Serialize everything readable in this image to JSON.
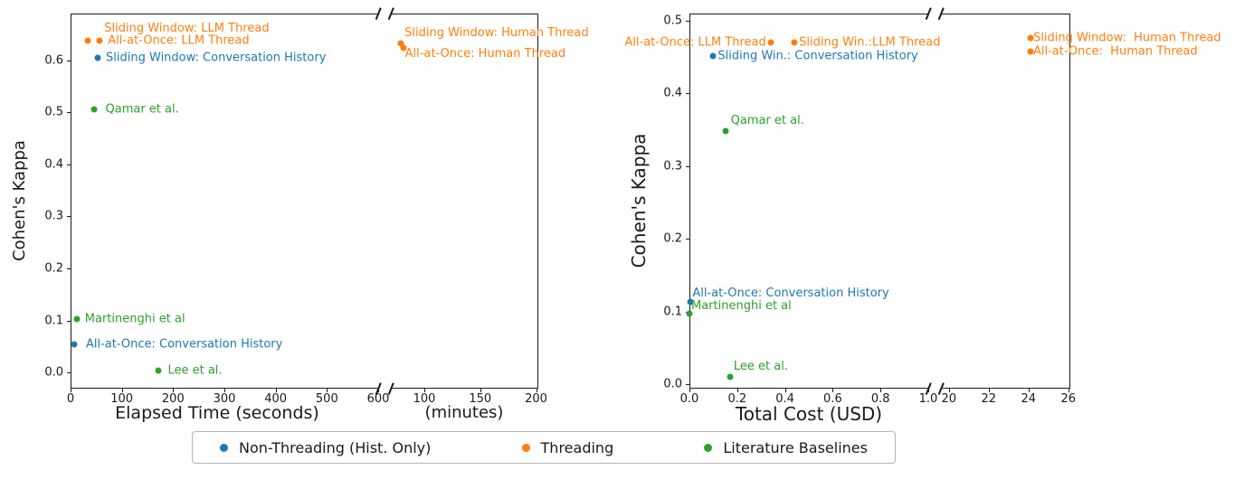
{
  "figure": {
    "background": "#ffffff"
  },
  "legend": {
    "position": "bottom-center",
    "items": [
      {
        "label": "Non-Threading (Hist. Only)",
        "color": "#1f77b4"
      },
      {
        "label": "Threading",
        "color": "#ff7f0e"
      },
      {
        "label": "Literature Baselines",
        "color": "#2ca02c"
      }
    ]
  },
  "chart_data": [
    {
      "type": "scatter",
      "geom": "fig1",
      "title": "",
      "ylabel": "Cohen's Kappa",
      "xlabels": [
        "Elapsed Time (seconds)",
        "(minutes)"
      ],
      "ylim": [
        -0.031,
        0.69
      ],
      "yticks": [
        "0.0",
        "0.1",
        "0.2",
        "0.3",
        "0.4",
        "0.5",
        "0.6"
      ],
      "grid": false,
      "broken_x_axis": true,
      "panels": [
        {
          "xlim": [
            0,
            600
          ],
          "xticks": [
            "0",
            "100",
            "200",
            "300",
            "400",
            "500",
            "600"
          ],
          "unit": "seconds"
        },
        {
          "xlim": [
            70,
            202
          ],
          "xticks": [
            "100",
            "150",
            "200"
          ],
          "unit": "minutes"
        }
      ],
      "points": [
        {
          "label": "Sliding Window: LLM Thread",
          "series": "Threading",
          "color": "#ff7f0e",
          "panel": 0,
          "x": 34,
          "y": 0.638,
          "label_side": "above-right",
          "dx": 16,
          "dy": -2
        },
        {
          "label": "All-at-Once: LLM Thread",
          "series": "Threading",
          "color": "#ff7f0e",
          "panel": 0,
          "x": 57,
          "y": 0.638,
          "label_side": "right",
          "dx": 4
        },
        {
          "label": "Sliding Window: Conversation History",
          "series": "Non-Threading (Hist. Only)",
          "color": "#1f77b4",
          "panel": 0,
          "x": 53,
          "y": 0.605,
          "label_side": "right",
          "dx": 4
        },
        {
          "label": "Qamar et al.",
          "series": "Literature Baselines",
          "color": "#2ca02c",
          "panel": 0,
          "x": 45,
          "y": 0.505,
          "label_side": "right",
          "dx": 8
        },
        {
          "label": "Martinenghi et al",
          "series": "Literature Baselines",
          "color": "#2ca02c",
          "panel": 0,
          "x": 12,
          "y": 0.103,
          "label_side": "right",
          "dx": 4
        },
        {
          "label": "All-at-Once: Conversation History",
          "series": "Non-Threading (Hist. Only)",
          "color": "#1f77b4",
          "panel": 0,
          "x": 7,
          "y": 0.054,
          "label_side": "right",
          "dx": 8
        },
        {
          "label": "Lee et al.",
          "series": "Literature Baselines",
          "color": "#2ca02c",
          "panel": 0,
          "x": 172,
          "y": 0.003,
          "label_side": "right",
          "dx": 5
        },
        {
          "label": "Sliding Window: Human Thread",
          "series": "Threading",
          "color": "#ff7f0e",
          "panel": 1,
          "x": 79,
          "y": 0.633,
          "label_side": "above-right",
          "dx": 2
        },
        {
          "label": "All-at-Once: Human Thread",
          "series": "Threading",
          "color": "#ff7f0e",
          "panel": 1,
          "x": 81,
          "y": 0.624,
          "label_side": "below-right",
          "dy": -5
        }
      ]
    },
    {
      "type": "scatter",
      "geom": "fig2",
      "title": "",
      "ylabel": "Cohen's Kappa",
      "xlabels": [
        "Total Cost (USD)"
      ],
      "ylim": [
        -0.006,
        0.51
      ],
      "yticks": [
        "0.0",
        "0.1",
        "0.2",
        "0.3",
        "0.4",
        "0.5"
      ],
      "grid": false,
      "broken_x_axis": true,
      "panels": [
        {
          "xlim": [
            0,
            1.0
          ],
          "xticks": [
            "0.0",
            "0.2",
            "0.4",
            "0.6",
            "0.8",
            "1.0"
          ],
          "unit": "USD"
        },
        {
          "xlim": [
            19.6,
            26.1
          ],
          "xticks": [
            "20",
            "22",
            "24",
            "26"
          ],
          "unit": "USD"
        }
      ],
      "points": [
        {
          "label": "All-at-Once: LLM Thread",
          "series": "Threading",
          "color": "#ff7f0e",
          "panel": 0,
          "x": 0.34,
          "y": 0.47,
          "label_side": "left"
        },
        {
          "label": "Sliding Win.:LLM Thread",
          "series": "Threading",
          "color": "#ff7f0e",
          "panel": 0,
          "x": 0.44,
          "y": 0.47,
          "label_side": "right"
        },
        {
          "label": "Sliding Win.: Conversation History",
          "series": "Non-Threading (Hist. Only)",
          "color": "#1f77b4",
          "panel": 0,
          "x": 0.1,
          "y": 0.452,
          "label_side": "right"
        },
        {
          "label": "Qamar et al.",
          "series": "Literature Baselines",
          "color": "#2ca02c",
          "panel": 0,
          "x": 0.15,
          "y": 0.348,
          "label_side": "above-right",
          "dx": 4
        },
        {
          "label": "All-at-Once: Conversation History",
          "series": "Non-Threading (Hist. Only)",
          "color": "#1f77b4",
          "panel": 0,
          "x": 0.005,
          "y": 0.113,
          "label_side": "above-right",
          "dy": 2
        },
        {
          "label": "Martinenghi et al",
          "series": "Literature Baselines",
          "color": "#2ca02c",
          "panel": 0,
          "x": 0.0,
          "y": 0.097,
          "label_side": "above-right",
          "dy": 3
        },
        {
          "label": "Lee et al.",
          "series": "Literature Baselines",
          "color": "#2ca02c",
          "panel": 0,
          "x": 0.17,
          "y": 0.01,
          "label_side": "above-right",
          "dx": 2
        },
        {
          "label": "Sliding Window:  Human Thread",
          "series": "Threading",
          "color": "#ff7f0e",
          "panel": 1,
          "x": 24.1,
          "y": 0.477,
          "label_side": "right",
          "dx": -2
        },
        {
          "label": "All-at-Once:  Human Thread",
          "series": "Threading",
          "color": "#ff7f0e",
          "panel": 1,
          "x": 24.1,
          "y": 0.458,
          "label_side": "right",
          "dx": -2
        }
      ]
    }
  ]
}
